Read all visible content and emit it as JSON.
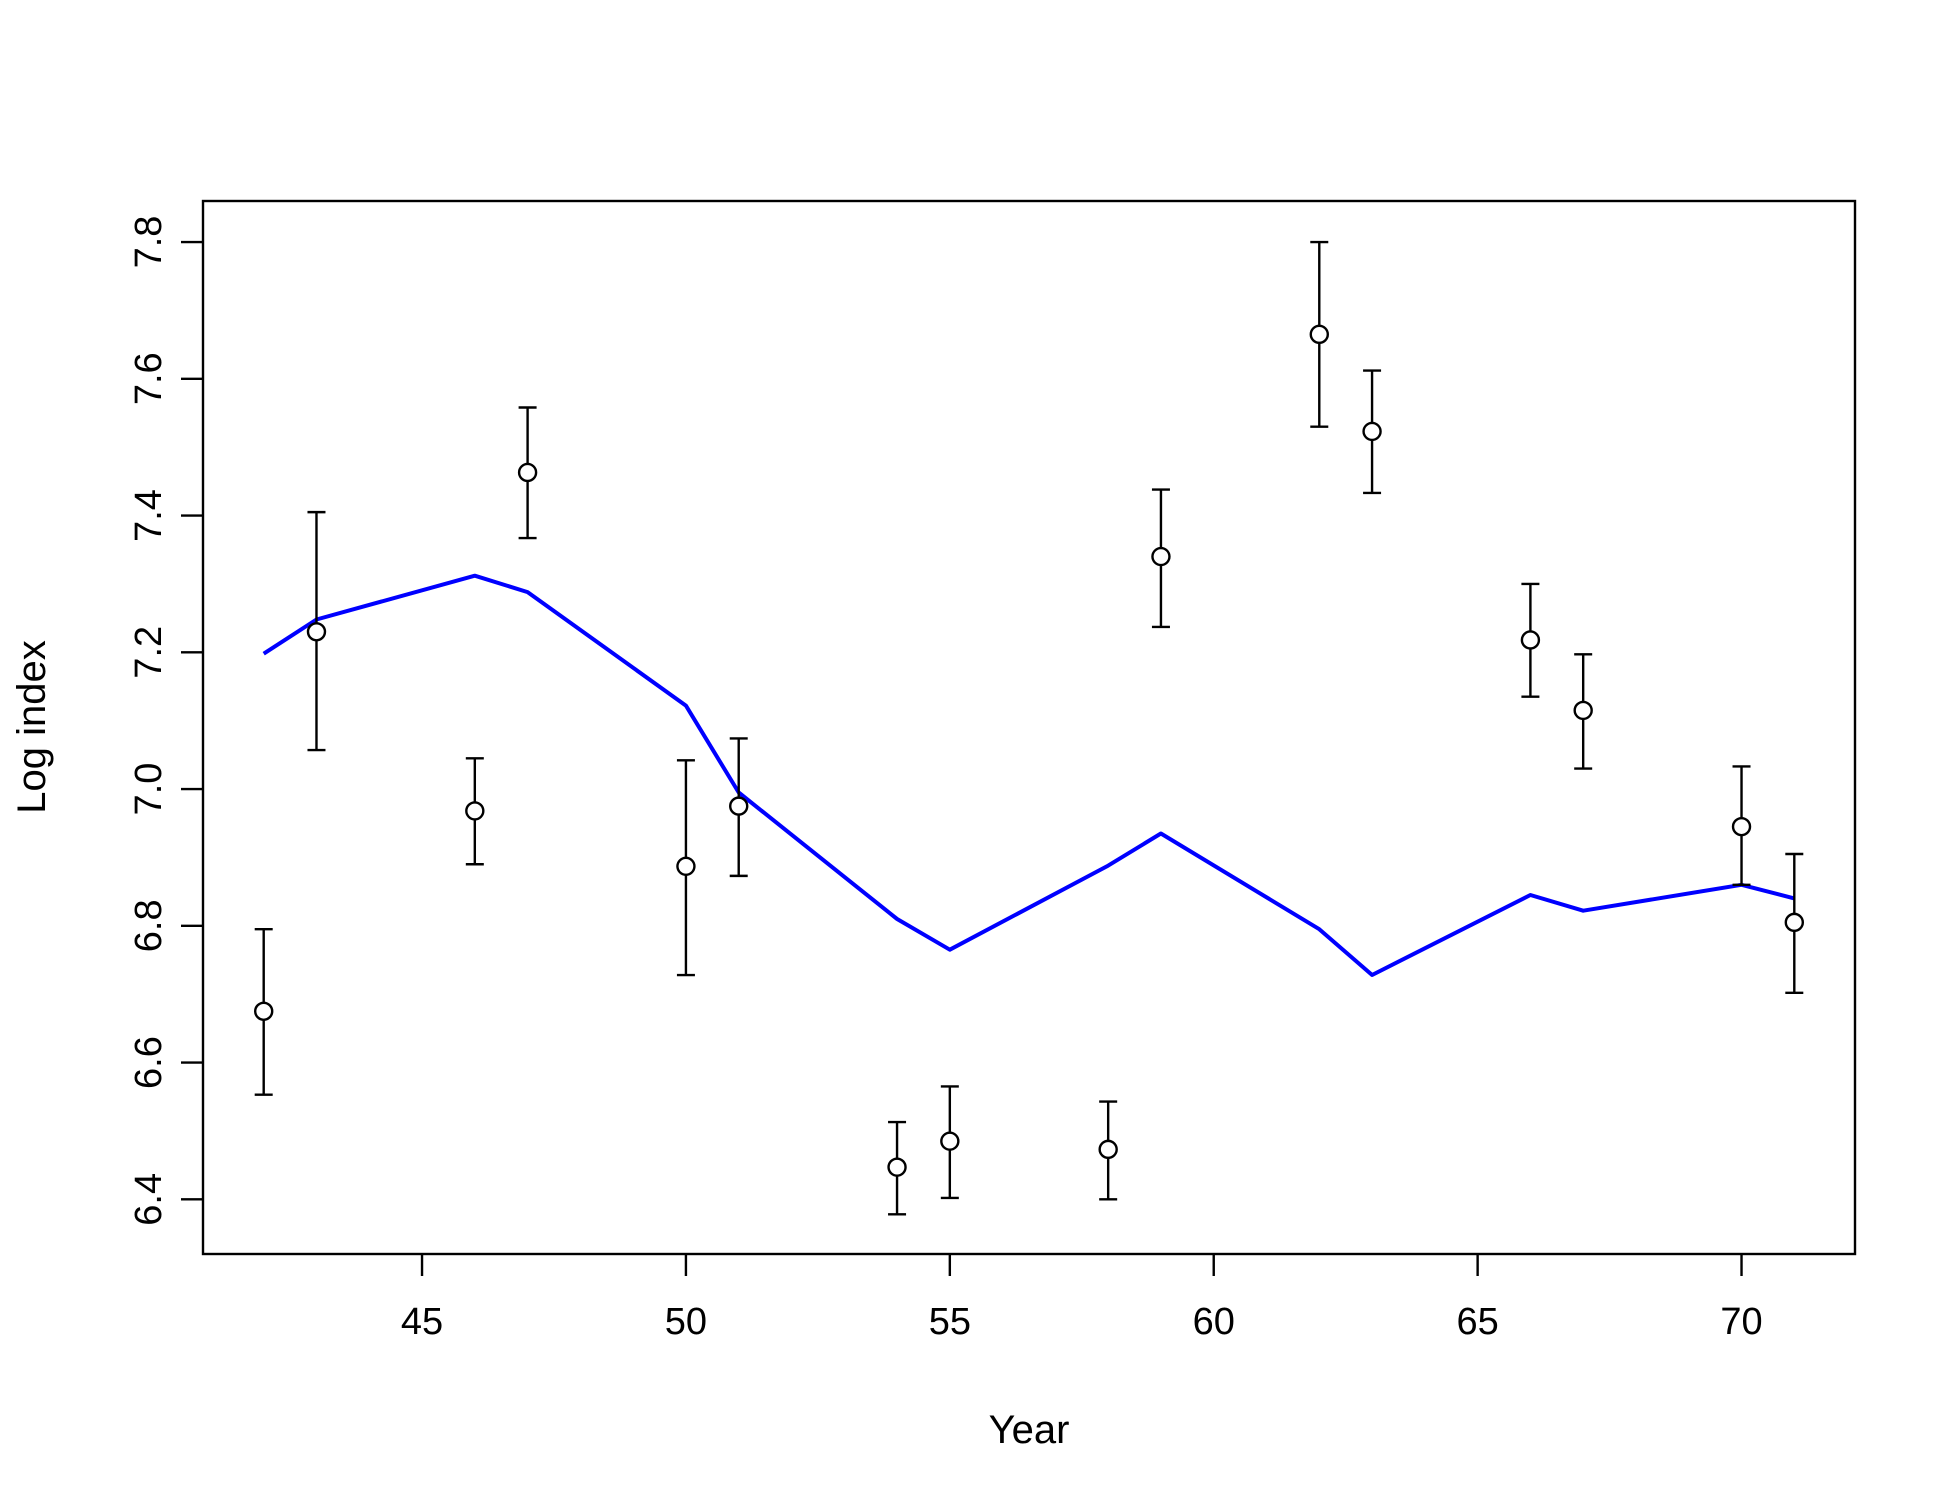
{
  "chart_data": {
    "type": "scatter",
    "title": "",
    "xlabel": "Year",
    "ylabel": "Log index",
    "xlim": [
      40.85,
      72.15
    ],
    "ylim": [
      6.32,
      7.86
    ],
    "x_ticks": [
      "45",
      "50",
      "55",
      "60",
      "65",
      "70"
    ],
    "y_ticks": [
      "6.4",
      "6.6",
      "6.8",
      "7.0",
      "7.2",
      "7.4",
      "7.6",
      "7.8"
    ],
    "grid": false,
    "legend": "none",
    "colors": {
      "points": "#000000",
      "fitted_line": "#0000ff"
    },
    "series": [
      {
        "type": "scatter-errorbar",
        "points": [
          {
            "x": 42,
            "y": 6.675,
            "lower": 6.553,
            "upper": 6.795
          },
          {
            "x": 43,
            "y": 7.23,
            "lower": 7.057,
            "upper": 7.405
          },
          {
            "x": 46,
            "y": 6.968,
            "lower": 6.89,
            "upper": 7.045
          },
          {
            "x": 47,
            "y": 7.463,
            "lower": 7.367,
            "upper": 7.558
          },
          {
            "x": 50,
            "y": 6.887,
            "lower": 6.728,
            "upper": 7.042
          },
          {
            "x": 51,
            "y": 6.975,
            "lower": 6.873,
            "upper": 7.074
          },
          {
            "x": 54,
            "y": 6.447,
            "lower": 6.378,
            "upper": 6.513
          },
          {
            "x": 55,
            "y": 6.485,
            "lower": 6.402,
            "upper": 6.565
          },
          {
            "x": 58,
            "y": 6.473,
            "lower": 6.4,
            "upper": 6.543
          },
          {
            "x": 59,
            "y": 7.34,
            "lower": 7.237,
            "upper": 7.438
          },
          {
            "x": 62,
            "y": 7.665,
            "lower": 7.53,
            "upper": 7.8
          },
          {
            "x": 63,
            "y": 7.523,
            "lower": 7.433,
            "upper": 7.612
          },
          {
            "x": 66,
            "y": 7.218,
            "lower": 7.135,
            "upper": 7.3
          },
          {
            "x": 67,
            "y": 7.115,
            "lower": 7.03,
            "upper": 7.197
          },
          {
            "x": 70,
            "y": 6.945,
            "lower": 6.86,
            "upper": 7.033
          },
          {
            "x": 71,
            "y": 6.805,
            "lower": 6.702,
            "upper": 6.905
          }
        ]
      },
      {
        "type": "line",
        "x": [
          42,
          43,
          46,
          47,
          50,
          51,
          54,
          55,
          58,
          59,
          62,
          63,
          66,
          67,
          70,
          71
        ],
        "y": [
          7.198,
          7.248,
          7.312,
          7.288,
          7.122,
          6.995,
          6.81,
          6.765,
          6.888,
          6.935,
          6.795,
          6.728,
          6.845,
          6.822,
          6.86,
          6.84
        ]
      }
    ]
  }
}
